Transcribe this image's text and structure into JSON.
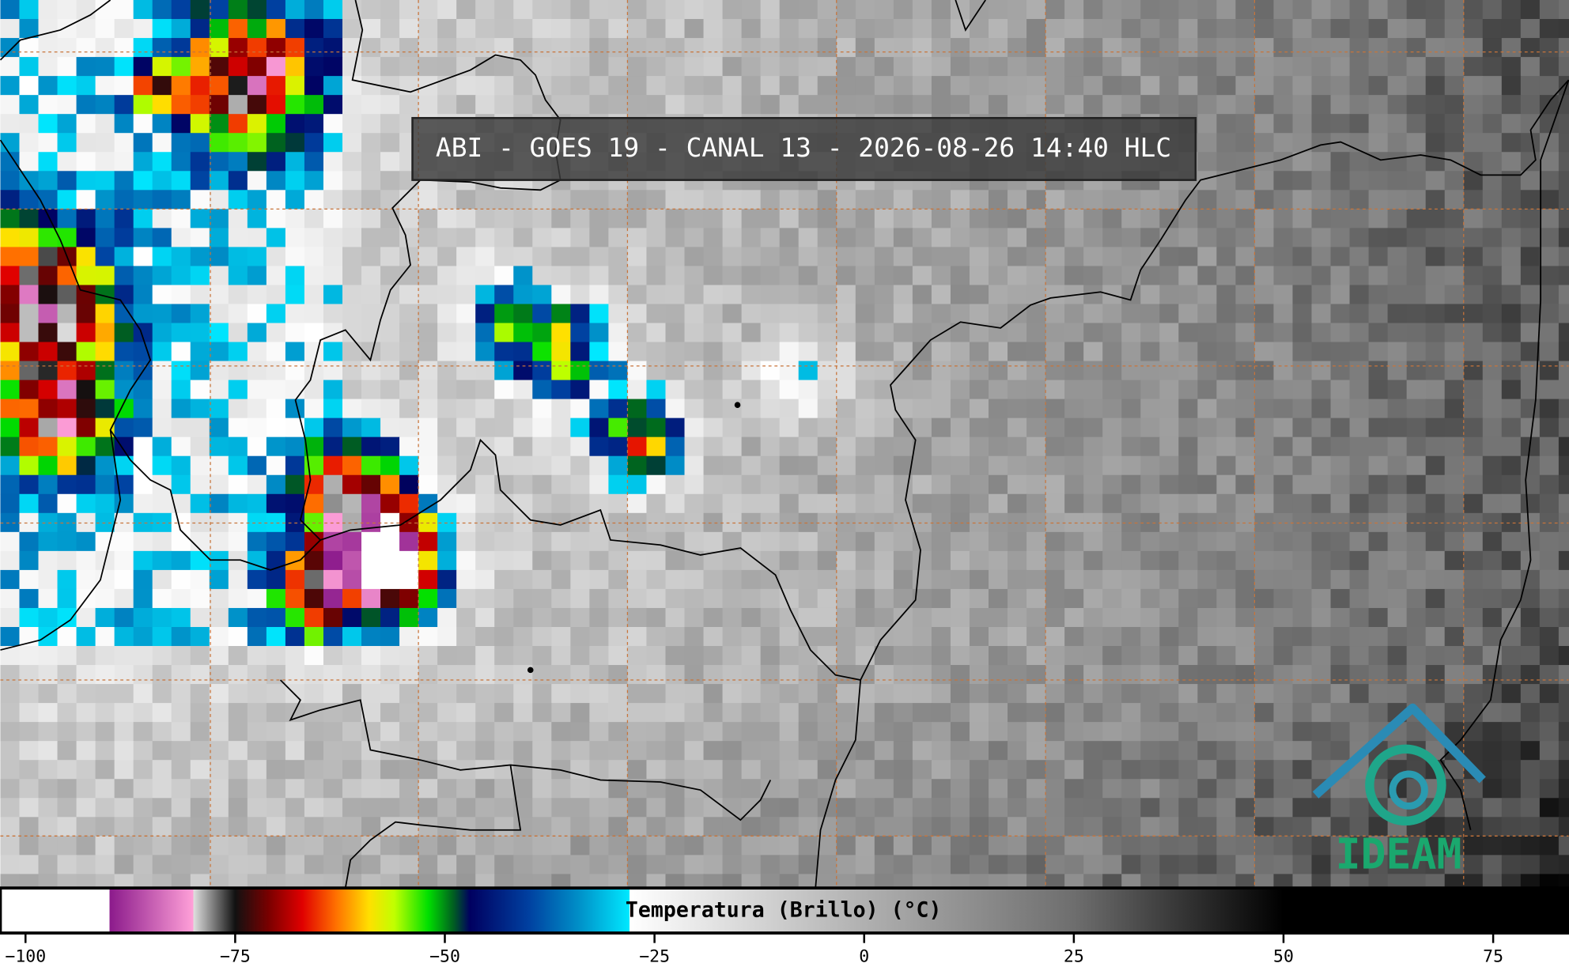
{
  "header": {
    "title": "ABI - GOES 19 - CANAL 13 - 2026-08-26 14:40 HLC"
  },
  "colorbar": {
    "label": "Temperatura (Brillo) (°C)",
    "xlim": [
      -103,
      84
    ],
    "xticks": [
      {
        "value": -100,
        "label": "−100"
      },
      {
        "value": -75,
        "label": "−75"
      },
      {
        "value": -50,
        "label": "−50"
      },
      {
        "value": -25,
        "label": "−25"
      },
      0,
      25,
      50,
      75
    ]
  },
  "logo": {
    "text": "IDEAM"
  }
}
